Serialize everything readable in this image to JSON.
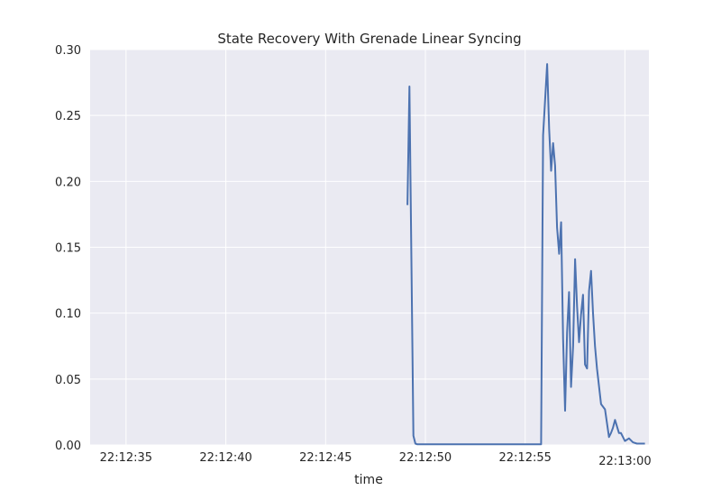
{
  "chart_data": {
    "type": "line",
    "title": "State Recovery With Grenade Linear Syncing",
    "xlabel": "time",
    "ylabel": "",
    "x_axis_kind": "time",
    "xlim": [
      "22:12:33.2",
      "22:13:01.2"
    ],
    "ylim": [
      0,
      0.3
    ],
    "x_ticks": [
      "22:12:35",
      "22:12:40",
      "22:12:45",
      "22:12:50",
      "22:12:55",
      "22:13:00"
    ],
    "y_ticks": [
      0,
      0.05,
      0.1,
      0.15,
      0.2,
      0.25,
      0.3
    ],
    "y_tick_labels": [
      "0.00",
      "0.05",
      "0.10",
      "0.15",
      "0.20",
      "0.25",
      "0.30"
    ],
    "grid": true,
    "legend": "none",
    "style": {
      "background": "#EAEAF2",
      "grid_color": "#FFFFFF",
      "line_color": "#4C72B0"
    },
    "series": [
      {
        "x": [
          "22:12:49.1",
          "22:12:49.2",
          "22:12:49.4",
          "22:12:49.5",
          "22:12:49.6",
          "22:12:50.0",
          "22:12:55.0",
          "22:12:55.8",
          "22:12:55.9",
          "22:12:56.1",
          "22:12:56.2",
          "22:12:56.3",
          "22:12:56.4",
          "22:12:56.5",
          "22:12:56.6",
          "22:12:56.7",
          "22:12:56.8",
          "22:12:56.9",
          "22:12:57.0",
          "22:12:57.1",
          "22:12:57.2",
          "22:12:57.3",
          "22:12:57.4",
          "22:12:57.5",
          "22:12:57.6",
          "22:12:57.7",
          "22:12:57.8",
          "22:12:57.9",
          "22:12:58.0",
          "22:12:58.1",
          "22:12:58.2",
          "22:12:58.3",
          "22:12:58.4",
          "22:12:58.5",
          "22:12:58.6",
          "22:12:58.8",
          "22:12:59.0",
          "22:12:59.2",
          "22:12:59.3",
          "22:12:59.4",
          "22:12:59.5",
          "22:12:59.7",
          "22:12:59.8",
          "22:12:59.9",
          "22:13:00.0",
          "22:13:00.2",
          "22:13:00.4",
          "22:13:00.6",
          "22:13:00.8",
          "22:13:01.0"
        ],
        "values": [
          0.182,
          0.272,
          0.007,
          0.001,
          0.0005,
          0.0005,
          0.0005,
          0.0005,
          0.235,
          0.289,
          0.24,
          0.208,
          0.229,
          0.212,
          0.165,
          0.145,
          0.169,
          0.08,
          0.026,
          0.085,
          0.116,
          0.044,
          0.075,
          0.141,
          0.105,
          0.078,
          0.099,
          0.114,
          0.061,
          0.058,
          0.117,
          0.132,
          0.1,
          0.075,
          0.058,
          0.031,
          0.027,
          0.006,
          0.009,
          0.013,
          0.019,
          0.009,
          0.009,
          0.006,
          0.003,
          0.005,
          0.002,
          0.001,
          0.001,
          0.001
        ]
      }
    ]
  }
}
